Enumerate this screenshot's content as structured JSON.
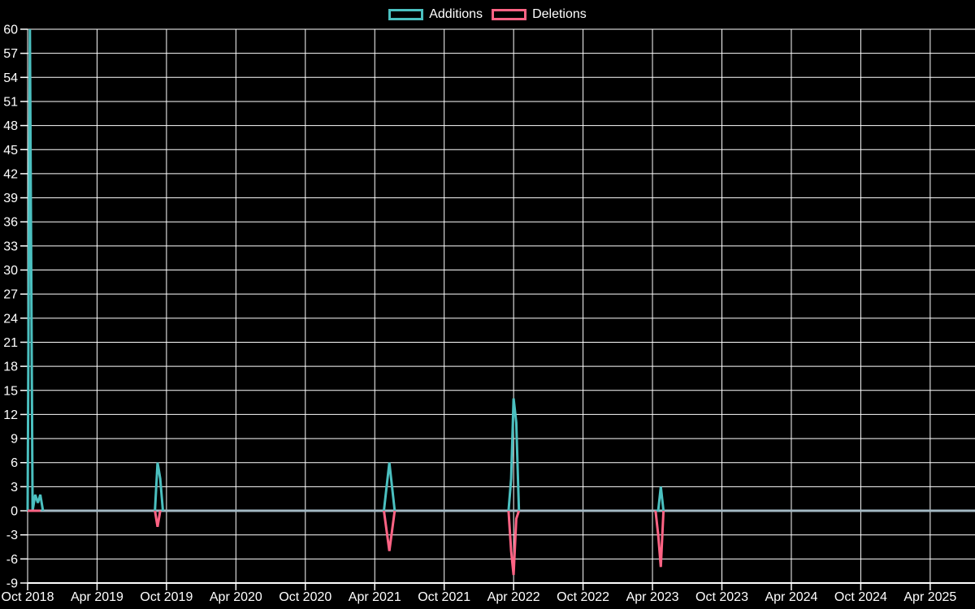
{
  "legend": {
    "items": [
      {
        "label": "Additions",
        "color": "#4bc0c0"
      },
      {
        "label": "Deletions",
        "color": "#ff6384"
      }
    ]
  },
  "chart_data": {
    "type": "line",
    "title": "",
    "legend_position": "top",
    "background_color": "#000000",
    "grid_color": "#ffffff",
    "zero_line_color": "#a3b9c4",
    "axis_text_color": "#ffffff",
    "grid": "on",
    "x_start_date": "2018-10-01",
    "x_months_per_tick": 6,
    "x_tick_labels": [
      "Oct 2018",
      "Apr 2019",
      "Oct 2019",
      "Apr 2020",
      "Oct 2020",
      "Apr 2021",
      "Oct 2021",
      "Apr 2022",
      "Oct 2022",
      "Apr 2023",
      "Oct 2023",
      "Apr 2024",
      "Oct 2024",
      "Apr 2025"
    ],
    "y_min": -9,
    "y_max": 60,
    "y_tick_step": 3,
    "y_tick_labels": [
      "60",
      "57",
      "54",
      "51",
      "48",
      "45",
      "42",
      "39",
      "36",
      "33",
      "30",
      "27",
      "24",
      "21",
      "18",
      "15",
      "12",
      "9",
      "6",
      "3",
      "0",
      "-3",
      "-6",
      "-9"
    ],
    "series": [
      {
        "name": "Additions",
        "color": "#4bc0c0",
        "line_width": 3,
        "segments": [
          [
            [
              "2018-10-01",
              0
            ],
            [
              "2018-10-07",
              60
            ],
            [
              "2018-10-14",
              0
            ],
            [
              "2018-10-21",
              2
            ],
            [
              "2018-10-28",
              1
            ],
            [
              "2018-11-04",
              2
            ],
            [
              "2018-11-11",
              0
            ]
          ],
          [
            [
              "2019-09-01",
              0
            ],
            [
              "2019-09-08",
              6
            ],
            [
              "2019-09-15",
              4
            ],
            [
              "2019-09-22",
              0
            ]
          ],
          [
            [
              "2021-04-25",
              0
            ],
            [
              "2021-05-09",
              6
            ],
            [
              "2021-05-23",
              0
            ]
          ],
          [
            [
              "2022-03-18",
              0
            ],
            [
              "2022-03-25",
              4
            ],
            [
              "2022-04-01",
              14
            ],
            [
              "2022-04-08",
              11
            ],
            [
              "2022-04-15",
              0
            ]
          ],
          [
            [
              "2023-04-09",
              0
            ],
            [
              "2023-04-16",
              0
            ],
            [
              "2023-04-23",
              3
            ],
            [
              "2023-04-30",
              0
            ]
          ]
        ]
      },
      {
        "name": "Deletions",
        "color": "#ff6384",
        "line_width": 3,
        "segments": [
          [
            [
              "2018-10-01",
              0
            ],
            [
              "2018-10-07",
              0
            ],
            [
              "2018-10-14",
              0
            ],
            [
              "2018-10-21",
              0
            ],
            [
              "2018-10-28",
              0
            ],
            [
              "2018-11-04",
              0
            ]
          ],
          [
            [
              "2019-09-01",
              0
            ],
            [
              "2019-09-08",
              -2
            ],
            [
              "2019-09-15",
              0
            ]
          ],
          [
            [
              "2021-04-25",
              0
            ],
            [
              "2021-05-09",
              -5
            ],
            [
              "2021-05-23",
              0
            ]
          ],
          [
            [
              "2022-03-18",
              0
            ],
            [
              "2022-03-25",
              -5
            ],
            [
              "2022-04-01",
              -8
            ],
            [
              "2022-04-08",
              -1
            ],
            [
              "2022-04-15",
              0
            ]
          ],
          [
            [
              "2023-04-09",
              0
            ],
            [
              "2023-04-16",
              -3
            ],
            [
              "2023-04-23",
              -7
            ],
            [
              "2023-04-30",
              0
            ]
          ]
        ]
      }
    ]
  }
}
